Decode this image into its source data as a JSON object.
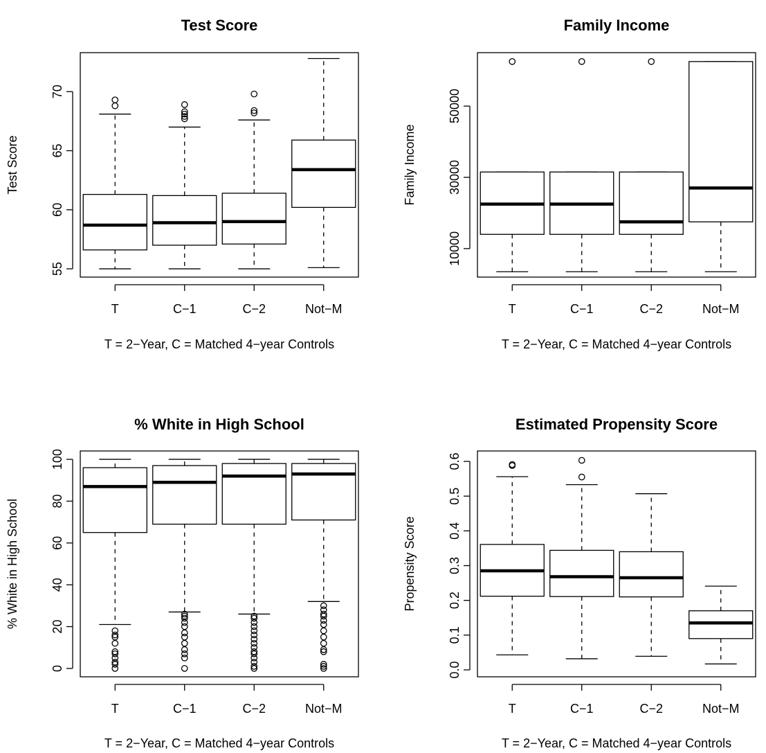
{
  "chart_data": [
    {
      "type": "boxplot",
      "title": "Test Score",
      "ylabel": "Test Score",
      "xlabel": "T = 2−Year, C = Matched 4−year Controls",
      "categories": [
        "T",
        "C−1",
        "C−2",
        "Not−M"
      ],
      "yticks": [
        55,
        60,
        65,
        70
      ],
      "ylim": [
        54.3,
        73.3
      ],
      "boxes": [
        {
          "lower_whisker": 55.0,
          "q1": 56.6,
          "median": 58.7,
          "q3": 61.3,
          "upper_whisker": 68.1,
          "outliers": [
            68.8,
            69.3
          ]
        },
        {
          "lower_whisker": 55.0,
          "q1": 57.0,
          "median": 58.9,
          "q3": 61.2,
          "upper_whisker": 67.0,
          "outliers": [
            67.7,
            67.9,
            68.1,
            68.3,
            68.9
          ]
        },
        {
          "lower_whisker": 55.0,
          "q1": 57.1,
          "median": 59.0,
          "q3": 61.4,
          "upper_whisker": 67.6,
          "outliers": [
            68.2,
            68.4,
            69.8
          ]
        },
        {
          "lower_whisker": 55.1,
          "q1": 60.2,
          "median": 63.4,
          "q3": 65.9,
          "upper_whisker": 72.8,
          "outliers": []
        }
      ]
    },
    {
      "type": "boxplot",
      "title": "Family Income",
      "ylabel": "Family Income",
      "xlabel": "T = 2−Year, C = Matched 4−year Controls",
      "categories": [
        "T",
        "C−1",
        "C−2",
        "Not−M"
      ],
      "yticks": [
        10000,
        30000,
        50000
      ],
      "ylim": [
        2000,
        65000
      ],
      "boxes": [
        {
          "lower_whisker": 3500,
          "q1": 14000,
          "median": 22500,
          "q3": 31500,
          "upper_whisker": 31500,
          "outliers": [
            62500
          ]
        },
        {
          "lower_whisker": 3500,
          "q1": 14000,
          "median": 22500,
          "q3": 31500,
          "upper_whisker": 31500,
          "outliers": [
            62500
          ]
        },
        {
          "lower_whisker": 3500,
          "q1": 14000,
          "median": 17500,
          "q3": 31500,
          "upper_whisker": 31500,
          "outliers": [
            62500
          ]
        },
        {
          "lower_whisker": 3500,
          "q1": 17500,
          "median": 27000,
          "q3": 62500,
          "upper_whisker": 62500,
          "outliers": []
        }
      ]
    },
    {
      "type": "boxplot",
      "title": "% White in High School",
      "ylabel": "% White in High School",
      "xlabel": "T = 2−Year, C = Matched 4−year Controls",
      "categories": [
        "T",
        "C−1",
        "C−2",
        "Not−M"
      ],
      "yticks": [
        0,
        20,
        40,
        60,
        80,
        100
      ],
      "ylim": [
        -4,
        104
      ],
      "boxes": [
        {
          "lower_whisker": 21,
          "q1": 65,
          "median": 87,
          "q3": 96,
          "upper_whisker": 100,
          "outliers": [
            0,
            2,
            3,
            5,
            7,
            8,
            12,
            15,
            16,
            18
          ]
        },
        {
          "lower_whisker": 27,
          "q1": 69,
          "median": 89,
          "q3": 97,
          "upper_whisker": 100,
          "outliers": [
            0,
            5,
            7,
            9,
            12,
            15,
            17,
            20,
            22,
            24,
            25,
            26
          ]
        },
        {
          "lower_whisker": 26,
          "q1": 69,
          "median": 92,
          "q3": 98,
          "upper_whisker": 100,
          "outliers": [
            0,
            1,
            3,
            5,
            7,
            8,
            10,
            12,
            14,
            16,
            18,
            20,
            22,
            24,
            25
          ]
        },
        {
          "lower_whisker": 32,
          "q1": 71,
          "median": 93,
          "q3": 98,
          "upper_whisker": 100,
          "outliers": [
            0,
            1,
            2,
            8,
            9,
            12,
            15,
            18,
            21,
            23,
            25,
            26,
            28,
            30
          ]
        }
      ]
    },
    {
      "type": "boxplot",
      "title": "Estimated Propensity Score",
      "ylabel": "Propensity Score",
      "xlabel": "T = 2−Year, C = Matched 4−year Controls",
      "categories": [
        "T",
        "C−1",
        "C−2",
        "Not−M"
      ],
      "yticks": [
        0.0,
        0.1,
        0.2,
        0.3,
        0.4,
        0.5,
        0.6
      ],
      "ytick_labels": [
        "0.0",
        "0.1",
        "0.2",
        "0.3",
        "0.4",
        "0.5",
        "0.6"
      ],
      "ylim": [
        -0.02,
        0.63
      ],
      "boxes": [
        {
          "lower_whisker": 0.043,
          "q1": 0.212,
          "median": 0.285,
          "q3": 0.361,
          "upper_whisker": 0.556,
          "outliers": [
            0.588,
            0.591
          ]
        },
        {
          "lower_whisker": 0.032,
          "q1": 0.211,
          "median": 0.268,
          "q3": 0.344,
          "upper_whisker": 0.533,
          "outliers": [
            0.555,
            0.603
          ]
        },
        {
          "lower_whisker": 0.039,
          "q1": 0.21,
          "median": 0.265,
          "q3": 0.34,
          "upper_whisker": 0.507,
          "outliers": []
        },
        {
          "lower_whisker": 0.017,
          "q1": 0.09,
          "median": 0.135,
          "q3": 0.17,
          "upper_whisker": 0.241,
          "outliers": []
        }
      ]
    }
  ]
}
